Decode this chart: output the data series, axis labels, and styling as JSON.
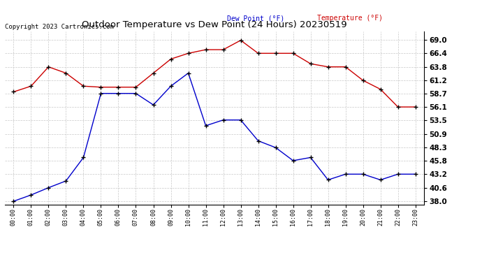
{
  "title": "Outdoor Temperature vs Dew Point (24 Hours) 20230519",
  "copyright": "Copyright 2023 Cartronics.com",
  "legend_dew": "Dew Point (°F)",
  "legend_temp": "Temperature (°F)",
  "x_labels": [
    "00:00",
    "01:00",
    "02:00",
    "03:00",
    "04:00",
    "05:00",
    "06:00",
    "07:00",
    "08:00",
    "09:00",
    "10:00",
    "11:00",
    "12:00",
    "13:00",
    "14:00",
    "15:00",
    "16:00",
    "17:00",
    "18:00",
    "19:00",
    "20:00",
    "21:00",
    "22:00",
    "23:00"
  ],
  "temperature": [
    59.0,
    60.1,
    63.8,
    62.6,
    60.1,
    59.9,
    59.9,
    59.9,
    62.6,
    65.3,
    66.4,
    67.1,
    67.1,
    68.9,
    66.4,
    66.4,
    66.4,
    64.4,
    63.8,
    63.8,
    61.2,
    59.5,
    56.1,
    56.1
  ],
  "dew_point": [
    38.0,
    39.2,
    40.6,
    41.9,
    46.4,
    58.7,
    58.7,
    58.7,
    56.5,
    60.1,
    62.6,
    52.5,
    53.6,
    53.6,
    49.6,
    48.3,
    45.8,
    46.4,
    42.1,
    43.2,
    43.2,
    42.1,
    43.2,
    43.2
  ],
  "ylim_min": 37.4,
  "ylim_max": 70.6,
  "yticks": [
    38.0,
    40.6,
    43.2,
    45.8,
    48.3,
    50.9,
    53.5,
    56.1,
    58.7,
    61.2,
    63.8,
    66.4,
    69.0
  ],
  "temp_color": "#cc0000",
  "dew_color": "#0000cc",
  "bg_color": "#ffffff",
  "grid_color": "#c8c8c8",
  "title_color": "#000000",
  "copyright_color": "#000000",
  "legend_dew_color": "#0000cc",
  "legend_temp_color": "#cc0000"
}
